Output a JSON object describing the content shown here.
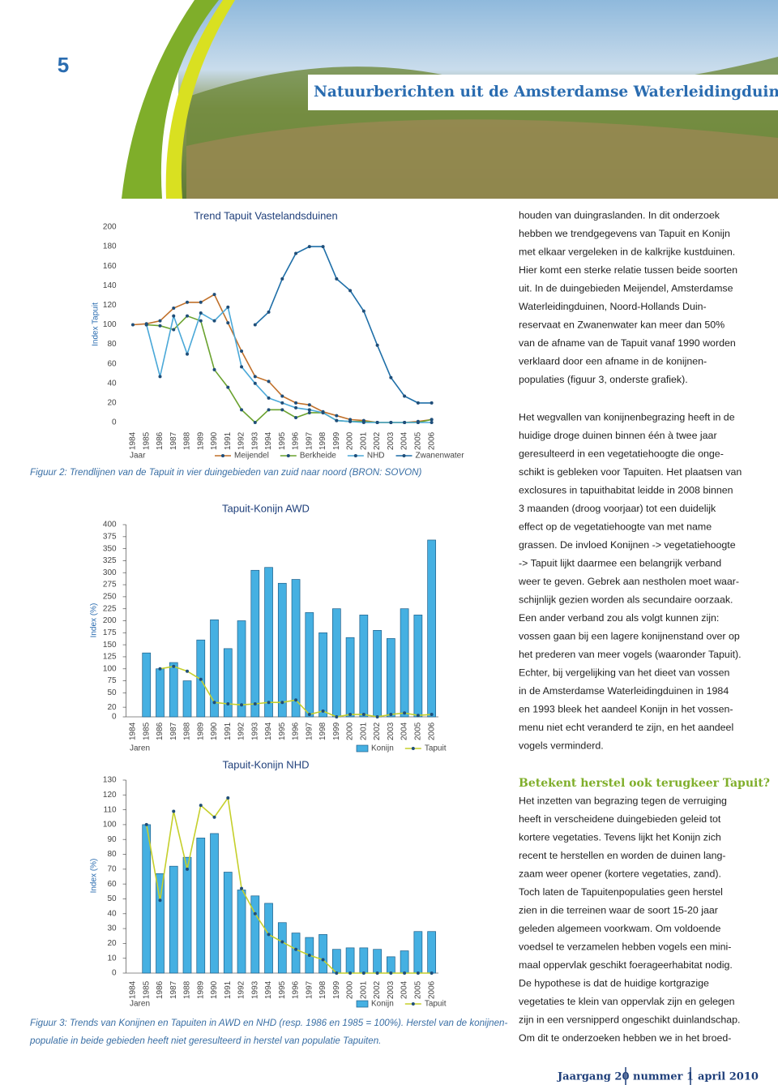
{
  "header": {
    "page_number": "5",
    "title": "Natuurberichten uit de Amsterdamse Waterleidingduinen"
  },
  "chart_data": [
    {
      "type": "line",
      "title": "Trend Tapuit Vastelandsduinen",
      "xlabel": "Jaar",
      "ylabel": "Index Tapuit",
      "categories": [
        "1984",
        "1985",
        "1986",
        "1987",
        "1988",
        "1989",
        "1990",
        "1991",
        "1992",
        "1993",
        "1994",
        "1995",
        "1996",
        "1997",
        "1998",
        "1999",
        "2000",
        "2001",
        "2002",
        "2003",
        "2004",
        "2005",
        "2006"
      ],
      "ylim": [
        0,
        200
      ],
      "yticks": [
        0,
        20,
        40,
        60,
        80,
        100,
        120,
        140,
        160,
        180,
        200
      ],
      "marker_color": "#1f4e79",
      "series": [
        {
          "name": "Meijendel",
          "color": "#c0702a",
          "values": [
            100,
            101,
            104,
            117,
            123,
            123,
            131,
            102,
            73,
            47,
            42,
            27,
            20,
            18,
            11,
            7,
            3,
            2,
            0,
            0,
            0,
            1,
            3
          ]
        },
        {
          "name": "Berkheide",
          "color": "#6aa22f",
          "values": [
            null,
            100,
            99,
            95,
            109,
            104,
            54,
            36,
            13,
            0,
            13,
            13,
            5,
            10,
            10,
            2,
            1,
            1,
            0,
            0,
            0,
            0,
            3
          ]
        },
        {
          "name": "NHD",
          "color": "#4aa8d8",
          "values": [
            null,
            100,
            47,
            109,
            70,
            112,
            104,
            118,
            57,
            40,
            25,
            20,
            15,
            13,
            10,
            2,
            1,
            0,
            0,
            0,
            0,
            0,
            0
          ]
        },
        {
          "name": "Zwanenwater",
          "color": "#1f6fa8",
          "values": [
            null,
            null,
            null,
            null,
            null,
            null,
            null,
            null,
            null,
            100,
            113,
            147,
            173,
            180,
            180,
            147,
            135,
            114,
            79,
            46,
            27,
            20,
            20
          ]
        }
      ]
    },
    {
      "type": "bar",
      "title": "Tapuit-Konijn AWD",
      "xlabel": "Jaren",
      "ylabel": "Index (%)",
      "categories": [
        "1984",
        "1985",
        "1986",
        "1987",
        "1988",
        "1989",
        "1990",
        "1991",
        "1992",
        "1993",
        "1994",
        "1995",
        "1996",
        "1997",
        "1998",
        "1999",
        "2000",
        "2001",
        "2002",
        "2003",
        "2004",
        "2005",
        "2006"
      ],
      "ylim": [
        0,
        400
      ],
      "yticks": [
        0,
        20,
        50,
        75,
        100,
        125,
        150,
        175,
        200,
        225,
        250,
        275,
        300,
        325,
        350,
        375,
        400
      ],
      "marker_color": "#1f4e79",
      "series": [
        {
          "name": "Konijn",
          "type": "bar",
          "color": "#45b0e2",
          "values": [
            null,
            133,
            100,
            113,
            75,
            160,
            202,
            142,
            200,
            305,
            311,
            278,
            286,
            217,
            175,
            225,
            165,
            212,
            180,
            163,
            225,
            212,
            368
          ]
        },
        {
          "name": "Tapuit",
          "type": "line",
          "color": "#c5cf2b",
          "values": [
            null,
            null,
            100,
            105,
            95,
            78,
            30,
            27,
            25,
            27,
            30,
            30,
            35,
            5,
            12,
            0,
            5,
            5,
            0,
            5,
            8,
            3,
            5
          ]
        }
      ]
    },
    {
      "type": "bar",
      "title": "Tapuit-Konijn NHD",
      "xlabel": "Jaren",
      "ylabel": "Index (%)",
      "categories": [
        "1984",
        "1985",
        "1986",
        "1987",
        "1988",
        "1989",
        "1990",
        "1991",
        "1992",
        "1993",
        "1994",
        "1995",
        "1996",
        "1997",
        "1998",
        "1999",
        "2000",
        "2001",
        "2002",
        "2003",
        "2004",
        "2005",
        "2006"
      ],
      "ylim": [
        0,
        130
      ],
      "yticks": [
        0,
        10,
        20,
        30,
        40,
        50,
        60,
        70,
        80,
        90,
        100,
        110,
        120,
        130
      ],
      "marker_color": "#1f4e79",
      "series": [
        {
          "name": "Konijn",
          "type": "bar",
          "color": "#45b0e2",
          "values": [
            null,
            100,
            67,
            72,
            78,
            91,
            94,
            68,
            56,
            52,
            47,
            34,
            27,
            24,
            26,
            16,
            17,
            17,
            16,
            11,
            15,
            28,
            28
          ]
        },
        {
          "name": "Tapuit",
          "type": "line",
          "color": "#c5cf2b",
          "values": [
            null,
            100,
            49,
            109,
            70,
            113,
            105,
            118,
            57,
            40,
            26,
            21,
            16,
            12,
            9,
            0,
            0,
            0,
            0,
            0,
            0,
            0,
            0
          ]
        }
      ]
    }
  ],
  "captions": [
    {
      "lines": [
        "Figuur 2: Trendlijnen van de Tapuit in vier duingebieden van zuid naar noord (BRON: SOVON)"
      ]
    },
    {
      "lines": [
        "Figuur 3: Trends van Konijnen en Tapuiten in AWD en NHD (resp. 1986 en 1985 = 100%). Herstel van de konijnen-",
        "populatie in beide gebieden heeft niet geresulteerd in herstel van populatie Tapuiten."
      ]
    }
  ],
  "body": {
    "paragraphs": [
      {
        "lines": [
          "houden van duingraslanden. In dit onderzoek",
          "hebben we trendgegevens van Tapuit en Konijn",
          "met elkaar vergeleken in de kalkrijke kustduinen.",
          "Hier komt een sterke relatie tussen beide soorten",
          "uit. In de duingebieden Meijendel, Amsterdamse",
          "Waterleidingduinen, Noord-Hollands Duin-",
          "reservaat en Zwanenwater kan meer dan 50%",
          "van de afname van de Tapuit vanaf 1990 worden",
          "verklaard door een afname in de konijnen-",
          "populaties (figuur 3, onderste grafiek)."
        ]
      },
      {
        "lines": [
          "Het wegvallen van konijnenbegrazing heeft in de",
          "huidige droge duinen binnen één à twee jaar",
          "geresulteerd in een vegetatiehoogte die onge-",
          "schikt is gebleken voor Tapuiten. Het plaatsen van",
          "exclosures in tapuithabitat leidde in 2008 binnen",
          "3 maanden (droog voorjaar) tot een duidelijk",
          "effect op de vegetatiehoogte van met name",
          "grassen. De invloed Konijnen -> vegetatiehoogte",
          "-> Tapuit lijkt daarmee een belangrijk verband",
          "weer te geven. Gebrek aan nestholen moet waar-",
          "schijnlijk gezien worden als secundaire oorzaak.",
          "Een ander verband zou als volgt kunnen zijn:",
          "vossen gaan bij een lagere konijnenstand over op",
          "het prederen van meer vogels (waaronder Tapuit).",
          "Echter, bij vergelijking van het dieet van vossen",
          "in de Amsterdamse Waterleidingduinen in 1984",
          "en 1993 bleek het aandeel Konijn in het vossen-",
          "menu niet echt veranderd te zijn, en het aandeel",
          "vogels verminderd."
        ]
      },
      {
        "lines": [
          "Het inzetten van begrazing tegen de verruiging",
          "heeft in verscheidene duingebieden geleid tot",
          "kortere vegetaties. Tevens lijkt het Konijn zich",
          "recent te herstellen en worden de duinen lang-",
          "zaam weer opener (kortere vegetaties, zand).",
          "Toch laten de Tapuitenpopulaties geen herstel",
          "zien in die terreinen waar de soort 15-20 jaar",
          "geleden algemeen voorkwam. Om voldoende",
          "voedsel te verzamelen hebben vogels een mini-",
          "maal oppervlak geschikt foerageerhabitat nodig.",
          "De hypothese is dat de huidige kortgrazige",
          "vegetaties te klein van oppervlak zijn en gelegen",
          "zijn in een versnipperd ongeschikt duinlandschap.",
          "Om dit te onderzoeken hebben we in het broed-"
        ]
      }
    ],
    "heading": "Betekent herstel ook terugkeer Tapuit?"
  },
  "footer": {
    "items": [
      "Jaargang 20",
      "nummer 1",
      "april 2010"
    ]
  }
}
